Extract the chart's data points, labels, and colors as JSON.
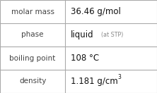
{
  "rows": [
    {
      "label": "molar mass",
      "value": "36.46 g/mol",
      "value_extra": null,
      "value_super": null
    },
    {
      "label": "phase",
      "value": "liquid",
      "value_extra": "(at STP)",
      "value_super": null
    },
    {
      "label": "boiling point",
      "value": "108 °C",
      "value_extra": null,
      "value_super": null
    },
    {
      "label": "density",
      "value": "1.181 g/cm",
      "value_extra": null,
      "value_super": "3"
    }
  ],
  "bg_color": "#ffffff",
  "border_color": "#aaaaaa",
  "label_color": "#444444",
  "value_color": "#111111",
  "extra_color": "#888888",
  "label_fontsize": 7.5,
  "value_fontsize": 8.5,
  "extra_fontsize": 5.8,
  "super_fontsize": 5.5,
  "col_split": 0.415,
  "fig_width": 2.22,
  "fig_height": 1.32,
  "dpi": 100
}
